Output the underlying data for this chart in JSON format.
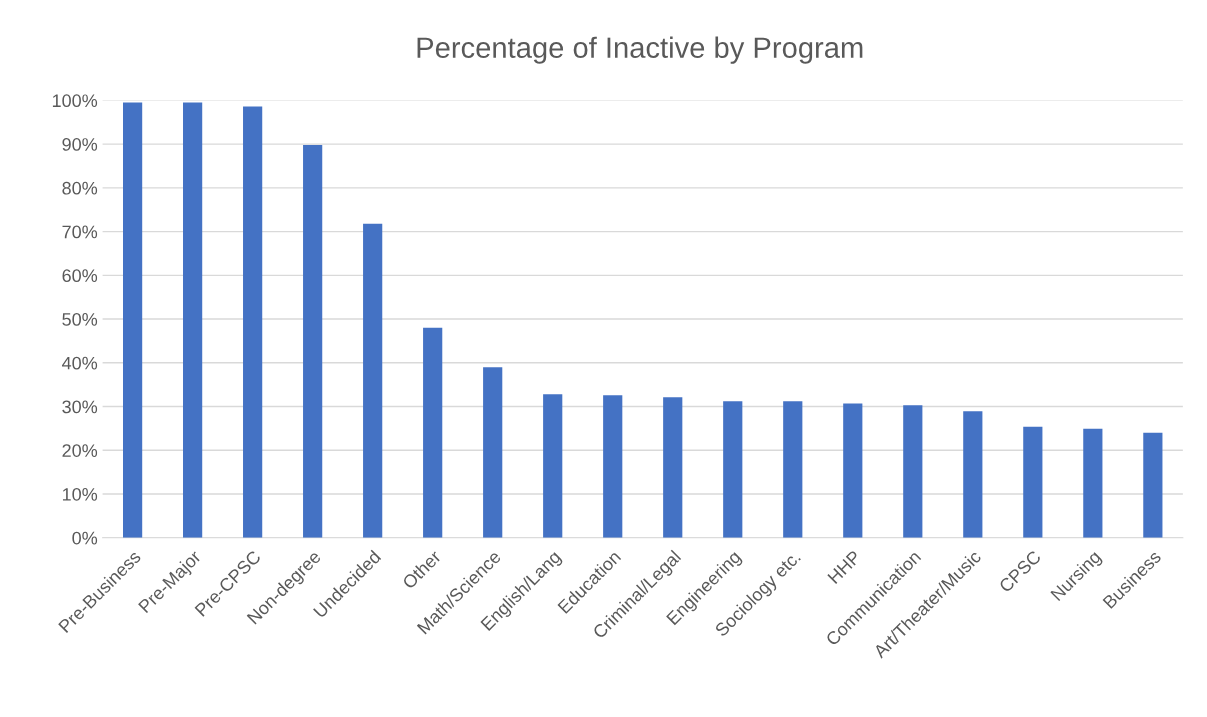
{
  "chart_data": {
    "type": "bar",
    "title": "Percentage of Inactive by Program",
    "categories": [
      "Pre-Business",
      "Pre-Major",
      "Pre-CPSC",
      "Non-degree",
      "Undecided",
      "Other",
      "Math/Science",
      "English/Lang",
      "Education",
      "Criminal/Legal",
      "Engineering",
      "Sociology etc.",
      "HHP",
      "Communication",
      "Art/Theater/Music",
      "CPSC",
      "Nursing",
      "Business"
    ],
    "values": [
      99.5,
      99.5,
      98.6,
      89.8,
      71.8,
      48.0,
      39.0,
      32.8,
      32.6,
      32.1,
      31.2,
      31.2,
      30.7,
      30.3,
      28.9,
      25.4,
      24.9,
      24.0
    ],
    "color": "#4472c4",
    "ylim": [
      0,
      100
    ],
    "yticks": [
      {
        "value": 0,
        "label": "0%"
      },
      {
        "value": 10,
        "label": "10%"
      },
      {
        "value": 20,
        "label": "20%"
      },
      {
        "value": 30,
        "label": "30%"
      },
      {
        "value": 40,
        "label": "40%"
      },
      {
        "value": 50,
        "label": "50%"
      },
      {
        "value": 60,
        "label": "60%"
      },
      {
        "value": 70,
        "label": "70%"
      },
      {
        "value": 80,
        "label": "80%"
      },
      {
        "value": 90,
        "label": "90%"
      },
      {
        "value": 100,
        "label": "100%"
      }
    ],
    "grid": "y"
  }
}
